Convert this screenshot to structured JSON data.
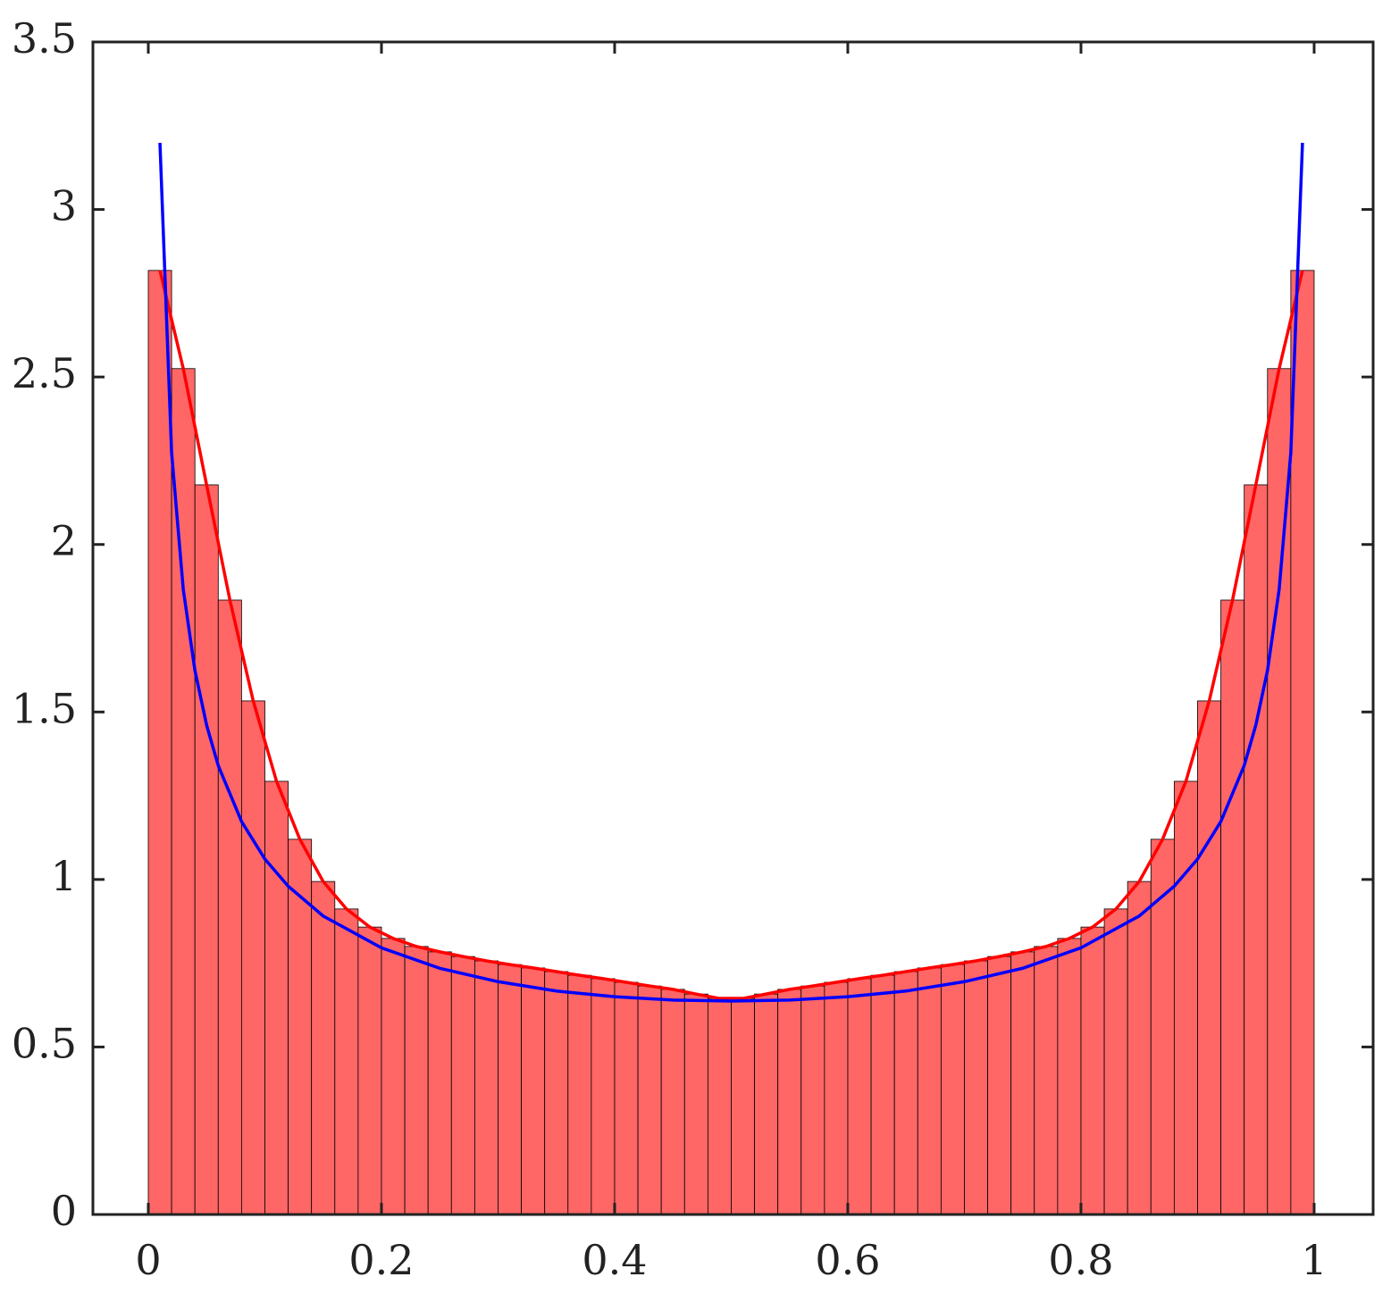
{
  "chart_data": {
    "type": "histogram",
    "bins": [
      0,
      0.02,
      0.04,
      0.06,
      0.08,
      0.1,
      0.12,
      0.14,
      0.16,
      0.18,
      0.2,
      0.22,
      0.24,
      0.26,
      0.28,
      0.3,
      0.32,
      0.34,
      0.36,
      0.38,
      0.4,
      0.42,
      0.44,
      0.46,
      0.48,
      0.5,
      0.52,
      0.54,
      0.56,
      0.58,
      0.6,
      0.62,
      0.64,
      0.66,
      0.68,
      0.7,
      0.72,
      0.74,
      0.76,
      0.78,
      0.8,
      0.82,
      0.84,
      0.86,
      0.88,
      0.9,
      0.92,
      0.94,
      0.96,
      0.98,
      1
    ],
    "values": [
      2.818,
      2.525,
      2.178,
      1.834,
      1.533,
      1.293,
      1.12,
      0.994,
      0.912,
      0.858,
      0.824,
      0.8,
      0.784,
      0.77,
      0.757,
      0.746,
      0.736,
      0.725,
      0.714,
      0.704,
      0.693,
      0.682,
      0.672,
      0.658,
      0.645,
      0.645,
      0.658,
      0.672,
      0.682,
      0.693,
      0.704,
      0.714,
      0.725,
      0.736,
      0.746,
      0.757,
      0.77,
      0.784,
      0.8,
      0.824,
      0.858,
      0.912,
      0.994,
      1.12,
      1.293,
      1.533,
      1.834,
      2.178,
      2.525,
      2.818
    ],
    "color": "#ff6666",
    "lines": [
      {
        "color": "#ff0000",
        "x": [
          0.01,
          0.03,
          0.05,
          0.07,
          0.09,
          0.11,
          0.13,
          0.15,
          0.17,
          0.19,
          0.21,
          0.23,
          0.25,
          0.27,
          0.29,
          0.31,
          0.33,
          0.35,
          0.37,
          0.39,
          0.41,
          0.43,
          0.45,
          0.47,
          0.49,
          0.51,
          0.53,
          0.55,
          0.57,
          0.59,
          0.61,
          0.63,
          0.65,
          0.67,
          0.69,
          0.71,
          0.73,
          0.75,
          0.77,
          0.79,
          0.81,
          0.83,
          0.85,
          0.87,
          0.89,
          0.91,
          0.93,
          0.95,
          0.97,
          0.99
        ],
        "values": [
          2.818,
          2.525,
          2.178,
          1.834,
          1.533,
          1.293,
          1.12,
          0.994,
          0.912,
          0.858,
          0.824,
          0.8,
          0.784,
          0.77,
          0.757,
          0.746,
          0.736,
          0.725,
          0.714,
          0.704,
          0.693,
          0.682,
          0.672,
          0.658,
          0.645,
          0.645,
          0.658,
          0.672,
          0.682,
          0.693,
          0.704,
          0.714,
          0.725,
          0.736,
          0.746,
          0.757,
          0.77,
          0.784,
          0.8,
          0.824,
          0.858,
          0.912,
          0.994,
          1.12,
          1.293,
          1.533,
          1.834,
          2.178,
          2.525,
          2.818
        ]
      },
      {
        "color": "#0000ff",
        "x": [
          0.01,
          0.02,
          0.03,
          0.04,
          0.05,
          0.06,
          0.08,
          0.1,
          0.12,
          0.15,
          0.2,
          0.25,
          0.3,
          0.35,
          0.4,
          0.45,
          0.5,
          0.55,
          0.6,
          0.65,
          0.7,
          0.75,
          0.8,
          0.85,
          0.88,
          0.9,
          0.92,
          0.94,
          0.95,
          0.96,
          0.97,
          0.98,
          0.99
        ],
        "values": [
          3.199,
          2.274,
          1.866,
          1.624,
          1.461,
          1.34,
          1.173,
          1.061,
          0.98,
          0.891,
          0.796,
          0.735,
          0.695,
          0.667,
          0.65,
          0.64,
          0.637,
          0.64,
          0.65,
          0.667,
          0.695,
          0.735,
          0.796,
          0.891,
          0.98,
          1.061,
          1.173,
          1.34,
          1.461,
          1.624,
          1.866,
          2.274,
          3.199
        ]
      }
    ],
    "xlim": [
      -0.0475,
      1.0506
    ],
    "ylim": [
      0,
      3.5
    ],
    "xticks": [
      0,
      0.2,
      0.4,
      0.6,
      0.8,
      1
    ],
    "yticks": [
      0,
      0.5,
      1,
      1.5,
      2,
      2.5,
      3,
      3.5
    ]
  }
}
